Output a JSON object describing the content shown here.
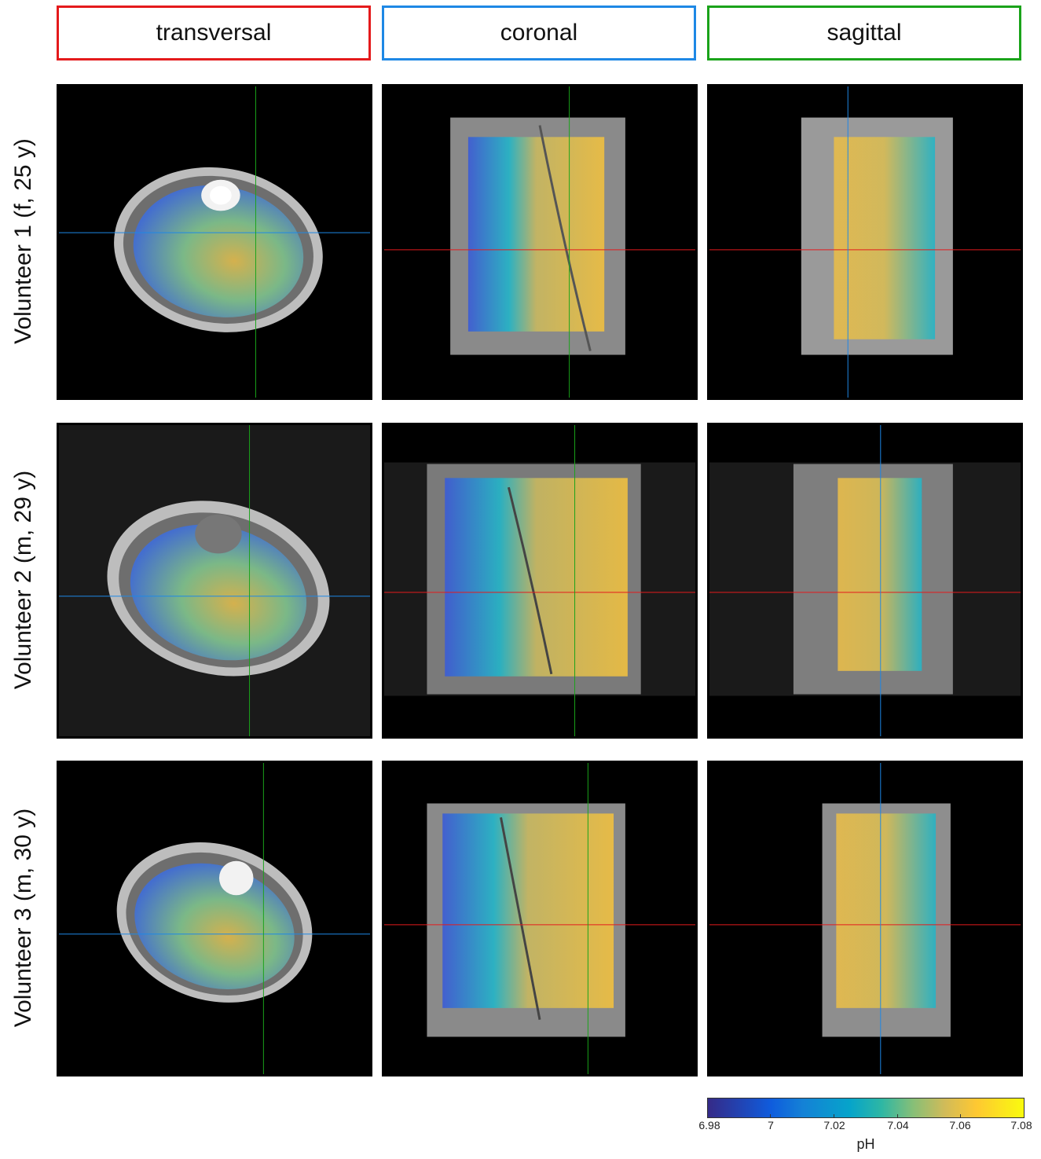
{
  "columns": [
    {
      "label": "transversal",
      "color": "#e41a1c"
    },
    {
      "label": "coronal",
      "color": "#1e88e5"
    },
    {
      "label": "sagittal",
      "color": "#1aa31a"
    }
  ],
  "rows": [
    {
      "label": "Volunteer 1 (f, 25 y)"
    },
    {
      "label": "Volunteer 2 (m, 29 y)"
    },
    {
      "label": "Volunteer 3 (m, 30 y)"
    }
  ],
  "colorbar": {
    "label": "pH",
    "range": [
      6.98,
      7.08
    ],
    "ticks": [
      "6.98",
      "7",
      "7.02",
      "7.04",
      "7.06",
      "7.08"
    ],
    "colormap": "parula"
  },
  "crosshair_colors": {
    "transversal": "#1e88e5",
    "coronal": "#1aa31a",
    "sagittal": "#e41a1c"
  }
}
